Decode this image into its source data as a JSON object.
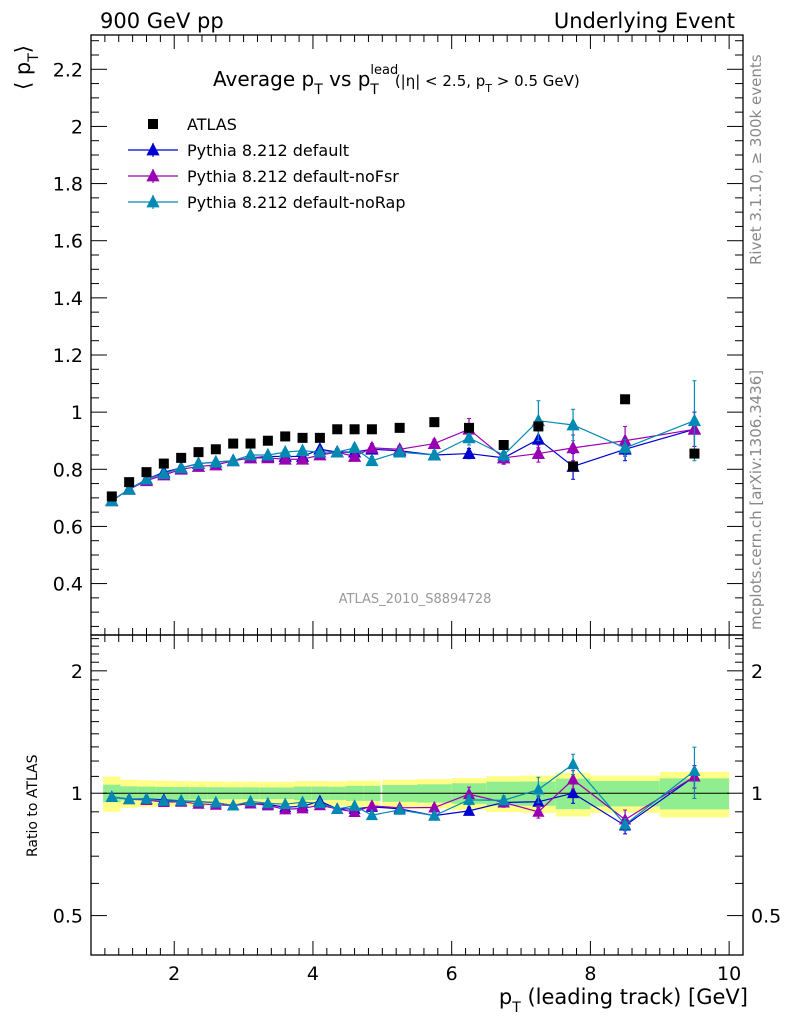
{
  "header": {
    "left": "900 GeV pp",
    "right": "Underlying Event"
  },
  "side_labels": {
    "rivet": "Rivet 3.1.10, ≥ 300k events",
    "mcplots": "mcplots.cern.ch [arXiv:1306.3436]"
  },
  "watermark": "ATLAS_2010_S8894728",
  "chart_data": {
    "type": "scatter",
    "title": {
      "prefix": "Average p",
      "sub_T": "T",
      "vs": " vs p",
      "sup_lead": "lead",
      "sub_T2": "T",
      "cuts_open": "(|η| < 2.5, p",
      "cuts_sub": "T",
      "cuts_close": " > 0.5 GeV)"
    },
    "ylabel": {
      "main": "⟨ p",
      "sub": "T",
      "close": "⟩"
    },
    "xlabel": {
      "main": "p",
      "sub": "T",
      "rest": " (leading track) [GeV]"
    },
    "ratio_ylabel": "Ratio to ATLAS",
    "xlim": [
      0.8,
      10.2
    ],
    "ylim": [
      0.22,
      2.32
    ],
    "ratio_ylim_log": [
      0.4,
      2.45
    ],
    "xticks_major": [
      "2",
      "4",
      "6",
      "8",
      "10"
    ],
    "yticks_major": [
      "0.4",
      "0.6",
      "0.8",
      "1",
      "1.2",
      "1.4",
      "1.6",
      "1.8",
      "2",
      "2.2"
    ],
    "ratio_yticks": [
      "0.5",
      "1",
      "2"
    ],
    "x": [
      1.1,
      1.35,
      1.6,
      1.85,
      2.1,
      2.35,
      2.6,
      2.85,
      3.1,
      3.35,
      3.6,
      3.85,
      4.1,
      4.35,
      4.6,
      4.85,
      5.25,
      5.75,
      6.25,
      6.75,
      7.25,
      7.75,
      8.5,
      9.5
    ],
    "xerr": [
      0.125,
      0.125,
      0.125,
      0.125,
      0.125,
      0.125,
      0.125,
      0.125,
      0.125,
      0.125,
      0.125,
      0.125,
      0.125,
      0.125,
      0.125,
      0.125,
      0.25,
      0.25,
      0.25,
      0.25,
      0.25,
      0.25,
      0.5,
      0.5
    ],
    "data": {
      "name": "ATLAS",
      "color": "#000000",
      "values": [
        0.705,
        0.755,
        0.79,
        0.82,
        0.84,
        0.86,
        0.87,
        0.89,
        0.89,
        0.9,
        0.915,
        0.91,
        0.91,
        0.94,
        0.94,
        0.94,
        0.945,
        0.965,
        0.945,
        0.885,
        0.95,
        0.81,
        1.045,
        0.855
      ],
      "band_inner": [
        0.035,
        0.03,
        0.03,
        0.03,
        0.03,
        0.03,
        0.03,
        0.03,
        0.03,
        0.03,
        0.03,
        0.035,
        0.035,
        0.035,
        0.04,
        0.04,
        0.045,
        0.05,
        0.055,
        0.06,
        0.065,
        0.07,
        0.075,
        0.075
      ],
      "band_outer": [
        0.07,
        0.06,
        0.06,
        0.06,
        0.06,
        0.06,
        0.06,
        0.06,
        0.06,
        0.06,
        0.06,
        0.065,
        0.065,
        0.065,
        0.07,
        0.07,
        0.075,
        0.08,
        0.085,
        0.09,
        0.1,
        0.1,
        0.11,
        0.11
      ]
    },
    "series": [
      {
        "name": "Pythia 8.212 default",
        "color": "#0000d0",
        "values": [
          0.69,
          0.73,
          0.765,
          0.79,
          0.805,
          0.82,
          0.825,
          0.83,
          0.84,
          0.845,
          0.845,
          0.845,
          0.87,
          0.86,
          0.86,
          0.87,
          0.865,
          0.85,
          0.855,
          0.84,
          0.905,
          0.81,
          0.87,
          0.94
        ],
        "errors": [
          0.005,
          0.005,
          0.005,
          0.005,
          0.005,
          0.005,
          0.006,
          0.006,
          0.007,
          0.008,
          0.009,
          0.01,
          0.011,
          0.012,
          0.013,
          0.015,
          0.013,
          0.015,
          0.018,
          0.022,
          0.03,
          0.045,
          0.04,
          0.06
        ]
      },
      {
        "name": "Pythia 8.212 default-noFsr",
        "color": "#9900b3",
        "values": [
          0.69,
          0.73,
          0.76,
          0.78,
          0.8,
          0.81,
          0.815,
          0.83,
          0.84,
          0.84,
          0.835,
          0.835,
          0.85,
          0.86,
          0.845,
          0.875,
          0.87,
          0.89,
          0.94,
          0.84,
          0.855,
          0.875,
          0.9,
          0.94
        ],
        "errors": [
          0.005,
          0.005,
          0.005,
          0.005,
          0.005,
          0.005,
          0.006,
          0.006,
          0.007,
          0.008,
          0.009,
          0.01,
          0.011,
          0.012,
          0.013,
          0.015,
          0.013,
          0.015,
          0.038,
          0.022,
          0.03,
          0.045,
          0.05,
          0.06
        ]
      },
      {
        "name": "Pythia 8.212 default-noRap",
        "color": "#008ab3",
        "values": [
          0.69,
          0.73,
          0.765,
          0.785,
          0.805,
          0.82,
          0.825,
          0.83,
          0.85,
          0.85,
          0.86,
          0.865,
          0.86,
          0.86,
          0.875,
          0.83,
          0.86,
          0.85,
          0.91,
          0.85,
          0.97,
          0.955,
          0.875,
          0.97
        ],
        "errors": [
          0.005,
          0.005,
          0.005,
          0.005,
          0.005,
          0.005,
          0.006,
          0.006,
          0.007,
          0.008,
          0.009,
          0.01,
          0.011,
          0.012,
          0.013,
          0.015,
          0.013,
          0.015,
          0.025,
          0.022,
          0.07,
          0.055,
          0.03,
          0.14
        ]
      }
    ],
    "legend_position": "top-left"
  }
}
